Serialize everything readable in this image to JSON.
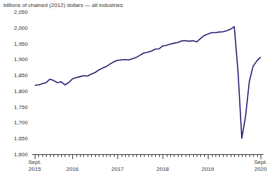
{
  "chart_data": {
    "type": "line",
    "ylabel": "billions of chained (2012) dollars — all industries",
    "categories": [
      "Sept. 2015",
      null,
      null,
      null,
      null,
      null,
      null,
      null,
      null,
      null,
      "2016",
      null,
      null,
      null,
      null,
      null,
      null,
      null,
      null,
      null,
      null,
      null,
      "2017",
      null,
      null,
      null,
      null,
      null,
      null,
      null,
      null,
      null,
      null,
      null,
      "2018",
      null,
      null,
      null,
      null,
      null,
      null,
      null,
      null,
      null,
      null,
      null,
      "2019",
      null,
      null,
      null,
      null,
      null,
      null,
      null,
      null,
      null,
      null,
      null,
      null,
      null,
      "Sept. 2020"
    ],
    "values": [
      1818,
      1819,
      1823,
      1826,
      1837,
      1833,
      1826,
      1829,
      1819,
      1826,
      1838,
      1842,
      1845,
      1848,
      1847,
      1853,
      1858,
      1866,
      1872,
      1877,
      1885,
      1892,
      1897,
      1898,
      1899,
      1898,
      1902,
      1906,
      1913,
      1920,
      1922,
      1926,
      1932,
      1933,
      1942,
      1944,
      1948,
      1951,
      1953,
      1958,
      1959,
      1957,
      1959,
      1955,
      1965,
      1975,
      1980,
      1984,
      1984,
      1986,
      1987,
      1990,
      1995,
      2003,
      1860,
      1650,
      1720,
      1830,
      1878,
      1895,
      1907
    ],
    "color": "#1f1d6e",
    "ylim": [
      1600,
      2050
    ],
    "yticks": [
      {
        "value": 1600,
        "label": "1,600"
      },
      {
        "value": 1650,
        "label": "1,650"
      },
      {
        "value": 1700,
        "label": "1,700"
      },
      {
        "value": 1750,
        "label": "1,750"
      },
      {
        "value": 1800,
        "label": "1,800"
      },
      {
        "value": 1850,
        "label": "1,850"
      },
      {
        "value": 1900,
        "label": "1,900"
      },
      {
        "value": 1950,
        "label": "1,950"
      },
      {
        "value": 2000,
        "label": "2,000"
      },
      {
        "value": 2050,
        "label": "2,050"
      }
    ],
    "grid": false
  }
}
